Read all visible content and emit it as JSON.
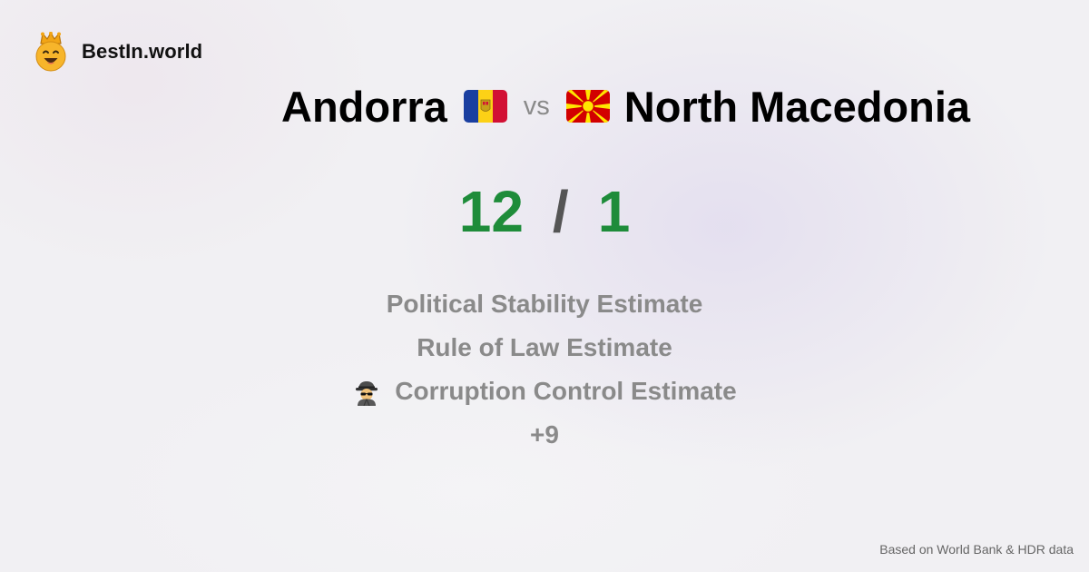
{
  "brand": {
    "name": "BestIn.world",
    "logo_icon": "crowned-smiley-icon"
  },
  "comparison": {
    "left_country": "Andorra",
    "left_flag_icon": "andorra-flag-icon",
    "vs_label": "vs",
    "right_country": "North Macedonia",
    "right_flag_icon": "north-macedonia-flag-icon"
  },
  "score": {
    "left": "12",
    "separator": "/",
    "right": "1",
    "color": "#1e8c3a"
  },
  "metrics": [
    {
      "label": "Political Stability Estimate"
    },
    {
      "label": "Rule of Law Estimate"
    },
    {
      "label": "Corruption Control Estimate",
      "icon": "detective-icon"
    }
  ],
  "more_label": "+9",
  "footer": {
    "source_note": "Based on World Bank & HDR data"
  }
}
